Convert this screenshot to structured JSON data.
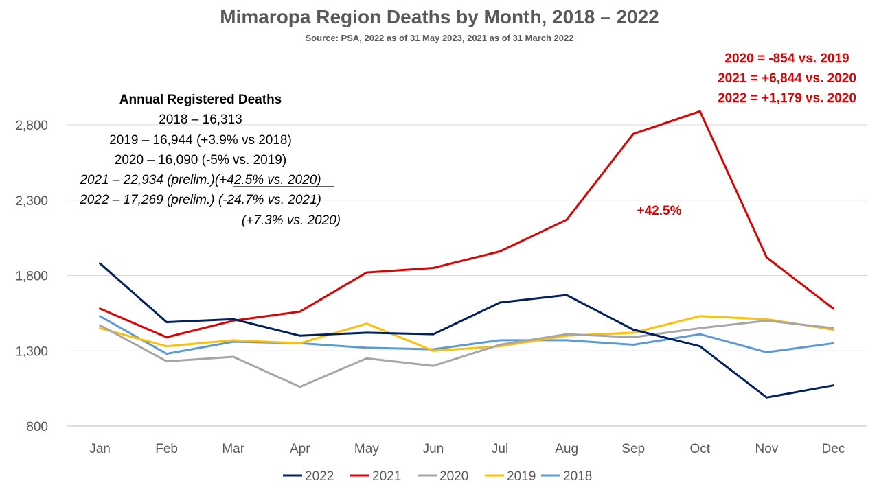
{
  "chart_data": {
    "type": "line",
    "title": "Mimaropa Region  Deaths by Month, 2018 – 2022",
    "subtitle": "Source: PSA, 2022 as of 31 May 2023, 2021 as of 31 March 2022",
    "categories": [
      "Jan",
      "Feb",
      "Mar",
      "Apr",
      "May",
      "Jun",
      "Jul",
      "Aug",
      "Sep",
      "Oct",
      "Nov",
      "Dec"
    ],
    "yticks": [
      800,
      1300,
      1800,
      2300,
      2800
    ],
    "ytick_labels": [
      "800",
      "1,300",
      "1,800",
      "2,300",
      "2,800"
    ],
    "ylim": [
      800,
      2800
    ],
    "grid": true,
    "legend_position": "bottom",
    "series": [
      {
        "name": "2022",
        "color": "#002060",
        "values": [
          1880,
          1490,
          1510,
          1400,
          1420,
          1410,
          1620,
          1670,
          1440,
          1330,
          990,
          1070
        ]
      },
      {
        "name": "2021",
        "color": "#e00000",
        "values": [
          1580,
          1390,
          1500,
          1560,
          1820,
          1850,
          1960,
          2170,
          2740,
          2890,
          1920,
          1580
        ]
      },
      {
        "name": "2020",
        "color": "#a6a6a6",
        "values": [
          1470,
          1230,
          1260,
          1060,
          1250,
          1200,
          1340,
          1410,
          1390,
          1450,
          1500,
          1450
        ]
      },
      {
        "name": "2019",
        "color": "#ffc000",
        "values": [
          1450,
          1330,
          1370,
          1350,
          1480,
          1300,
          1330,
          1400,
          1420,
          1530,
          1510,
          1440
        ]
      },
      {
        "name": "2018",
        "color": "#5b9bd5",
        "values": [
          1530,
          1280,
          1360,
          1350,
          1320,
          1310,
          1370,
          1370,
          1340,
          1410,
          1290,
          1350
        ]
      }
    ],
    "annotations": {
      "box_title": "Annual Registered Deaths",
      "lines": [
        {
          "text": "2018 – 16,313",
          "italic": false
        },
        {
          "text": "2019 – 16,944 (+3.9% vs 2018)",
          "italic": false
        },
        {
          "text": "2020 – 16,090 (-5% vs. 2019)",
          "italic": false
        },
        {
          "text": "2021 – 22,934 (prelim.)(+42.5% vs. 2020)",
          "italic": true
        },
        {
          "text": "2022 – 17,269 (prelim.) (-24.7% vs. 2021)",
          "italic": true
        },
        {
          "text": "(+7.3% vs. 2020)",
          "italic": true
        }
      ],
      "red_lines": [
        "2020 = -854 vs. 2019",
        "2021 = +6,844 vs. 2020",
        "2022 = +1,179 vs. 2020"
      ],
      "peak_label": "+42.5%"
    }
  }
}
